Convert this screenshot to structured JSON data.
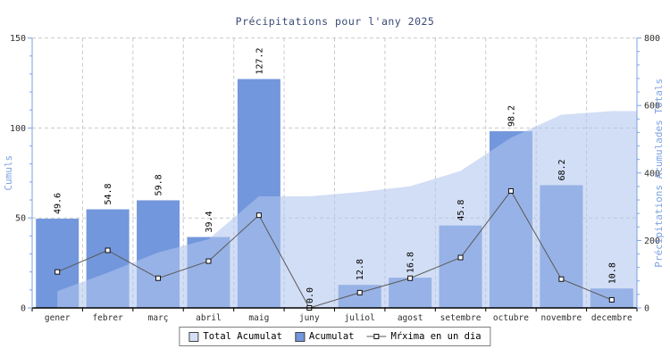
{
  "title": "Précipitations pour l'any 2025",
  "chart_data": {
    "type": "bar",
    "title": "Précipitations pour l'any 2025",
    "categories": [
      "gener",
      "febrer",
      "març",
      "abril",
      "maig",
      "juny",
      "juliol",
      "agost",
      "setembre",
      "octubre",
      "novembre",
      "decembre"
    ],
    "series": [
      {
        "name": "Total Acumulat",
        "type": "area",
        "axis": "right",
        "values": [
          49.6,
          104.4,
          164.2,
          203.6,
          330.8,
          330.8,
          343.6,
          360.4,
          406.2,
          504.4,
          572.6,
          583.4
        ]
      },
      {
        "name": "Acumulat",
        "type": "bar",
        "axis": "left",
        "values": [
          49.6,
          54.8,
          59.8,
          39.4,
          127.2,
          0.0,
          12.8,
          16.8,
          45.8,
          98.2,
          68.2,
          10.8
        ],
        "labels": [
          "49.6",
          "54.8",
          "59.8",
          "39.4",
          "127.2",
          "0.0",
          "12.8",
          "16.8",
          "45.8",
          "98.2",
          "68.2",
          "10.8"
        ]
      },
      {
        "name": "Mŕxima en un dia",
        "type": "line",
        "axis": "left",
        "values": [
          20.0,
          32.0,
          16.5,
          26.0,
          51.5,
          0.0,
          8.5,
          16.5,
          28.0,
          65.0,
          16.0,
          4.5
        ]
      }
    ],
    "left_axis": {
      "label": "Cumuls",
      "min": 0,
      "max": 150,
      "major_ticks": [
        0,
        50,
        100,
        150
      ],
      "minor_step": 10
    },
    "right_axis": {
      "label": "Précipitations Acumulades Totals",
      "min": 0,
      "max": 800,
      "major_ticks": [
        0,
        200,
        400,
        600,
        800
      ],
      "minor_step": 40
    },
    "grid": "dashed",
    "legend_position": "bottom",
    "colors": {
      "bar": "#7397dc",
      "area": "#d5e0f5",
      "area_overlay": "rgba(178,199,237,0.58)",
      "line": "#5a5a5a",
      "marker_fill": "#ffffff",
      "marker_stroke": "#111111",
      "axis_blue": "#7ba2e2",
      "x_axis": "#000000",
      "grid": "#c9c9c9",
      "title": "#3b4a75",
      "text": "#2f2f2f",
      "value_label": "#000000"
    }
  },
  "legend": {
    "items": [
      {
        "label": "Total Acumulat",
        "swatch": "area"
      },
      {
        "label": "Acumulat",
        "swatch": "bar"
      },
      {
        "label": "Mŕxima en un dia",
        "swatch": "line-marker"
      }
    ]
  }
}
